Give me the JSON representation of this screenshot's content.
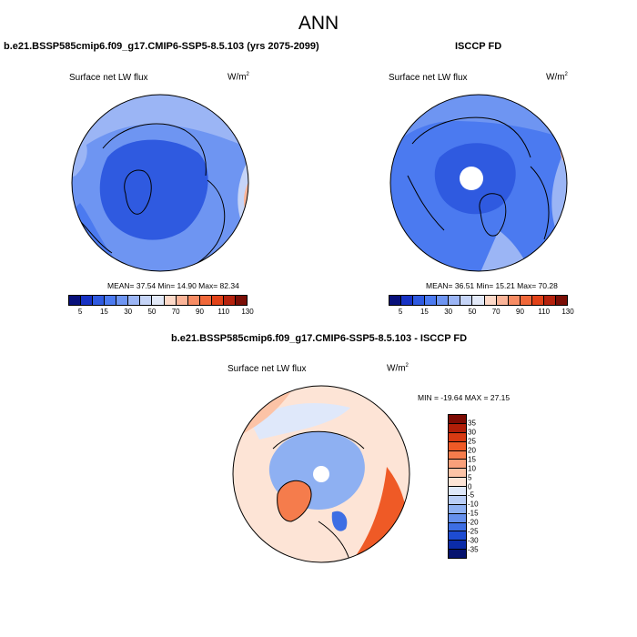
{
  "figure": {
    "title": "ANN"
  },
  "panels": {
    "left": {
      "title": "b.e21.BSSP585cmip6.f09_g17.CMIP6-SSP5-8.5.103 (yrs 2075-2099)",
      "variable": "Surface net LW flux",
      "units": "W/m",
      "units_exp": "2",
      "stats": "MEAN=  37.54  Min=  14.90  Max=  82.34"
    },
    "right": {
      "title": "ISCCP FD",
      "variable": "Surface net LW flux",
      "units": "W/m",
      "units_exp": "2",
      "stats": "MEAN=  36.51  Min=  15.21  Max=  70.28"
    },
    "diff": {
      "title": "b.e21.BSSP585cmip6.f09_g17.CMIP6-SSP5-8.5.103 - ISCCP FD",
      "variable": "Surface net LW flux",
      "units": "W/m",
      "units_exp": "2",
      "stats": "MIN = -19.64 MAX =  27.15"
    }
  },
  "colorbars": {
    "abs": {
      "labels": [
        "5",
        "15",
        "30",
        "50",
        "70",
        "90",
        "110",
        "130"
      ],
      "colors": [
        "#08107a",
        "#1732c4",
        "#2f5ae0",
        "#4b7af0",
        "#6e95f2",
        "#9bb5f5",
        "#c5d4f7",
        "#e2e9f8",
        "#fdd9c8",
        "#fbb498",
        "#f78c64",
        "#f0683a",
        "#e14218",
        "#b5220d",
        "#7a0e06"
      ]
    },
    "diff": {
      "labels": [
        "35",
        "30",
        "25",
        "20",
        "15",
        "10",
        "5",
        "0",
        "-5",
        "-10",
        "-15",
        "-20",
        "-25",
        "-30",
        "-35"
      ],
      "colors": [
        "#7d0b03",
        "#b01e08",
        "#d83a12",
        "#ef5a26",
        "#f57c4c",
        "#f9a07a",
        "#fcc3a6",
        "#fde4d6",
        "#dfe8fa",
        "#b9cdf6",
        "#8eb0f2",
        "#6590ed",
        "#3d6ee4",
        "#1d4cd2",
        "#0b2ca8",
        "#06136e"
      ]
    }
  },
  "map_colors": {
    "ocean_deep": "#2f5ae0",
    "mid": "#4b7af0",
    "light": "#9bb5f5",
    "pale": "#c5d4f7",
    "warm": "#fbb498",
    "diff_warm": "#fcc3a6",
    "diff_hot": "#ef5a26",
    "diff_cool": "#8eb0f2",
    "diff_cold": "#3d6ee4"
  }
}
